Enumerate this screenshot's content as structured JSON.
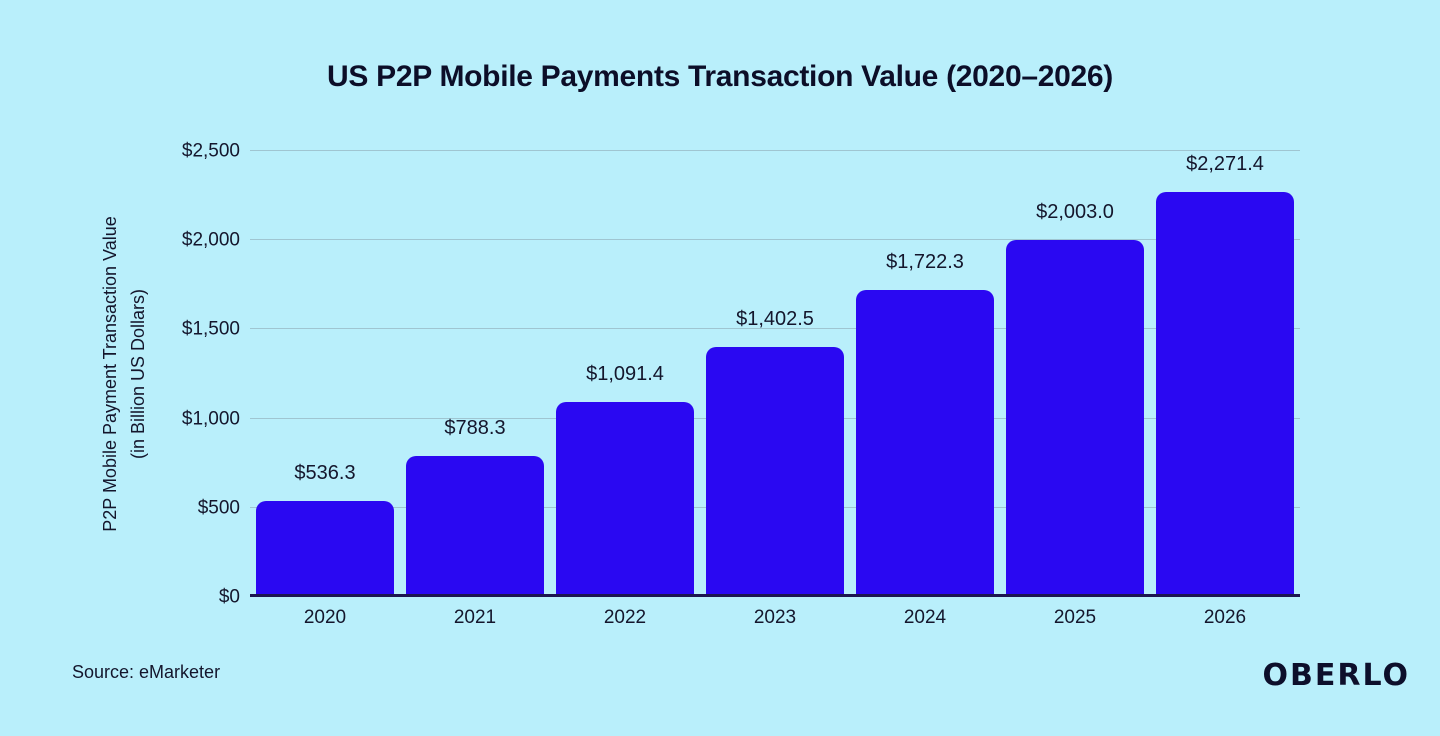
{
  "title": "US P2P Mobile Payments Transaction Value (2020–2026)",
  "source": "Source: eMarketer",
  "brand": "OBERLO",
  "colors": {
    "background": "#b9effb",
    "bar": "#2a08f2",
    "grid": "#9fc5d1",
    "axis": "#1c1550",
    "text": "#14162c"
  },
  "chart_data": {
    "type": "bar",
    "title": "US P2P Mobile Payments Transaction Value (2020–2026)",
    "categories": [
      "2020",
      "2021",
      "2022",
      "2023",
      "2024",
      "2025",
      "2026"
    ],
    "values": [
      536.3,
      788.3,
      1091.4,
      1402.5,
      1722.3,
      2003.0,
      2271.4
    ],
    "value_labels": [
      "$536.3",
      "$788.3",
      "$1,091.4",
      "$1,402.5",
      "$1,722.3",
      "$2,003.0",
      "$2,271.4"
    ],
    "ylabel_line1": "P2P Mobile Payment Transaction Value",
    "ylabel_line2": "(in Billion US Dollars)",
    "ylim": [
      0,
      2500
    ],
    "yticks": [
      0,
      500,
      1000,
      1500,
      2000,
      2500
    ],
    "ytick_labels": [
      "$0",
      "$500",
      "$1,000",
      "$1,500",
      "$2,000",
      "$2,500"
    ],
    "grid": "horizontal",
    "legend": "none",
    "bar_corner_radius": 10
  }
}
